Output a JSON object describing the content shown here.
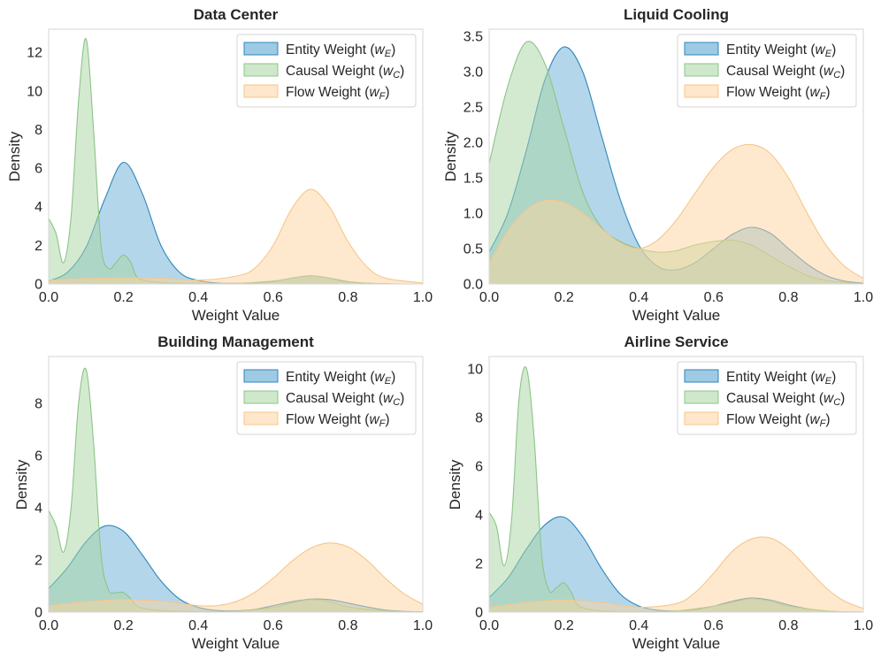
{
  "colors": {
    "entity_fill": "#6aaed6",
    "entity_line": "#2f86bd",
    "causal_fill": "#a8d5a2",
    "causal_line": "#8cc487",
    "flow_fill": "#fdd49e",
    "flow_line": "#f8c58a"
  },
  "legend": [
    {
      "key": "entity",
      "label": "Entity Weight (",
      "sym": "w",
      "sub": "E",
      "close": ")"
    },
    {
      "key": "causal",
      "label": "Causal Weight (",
      "sym": "w",
      "sub": "C",
      "close": ")"
    },
    {
      "key": "flow",
      "label": "Flow Weight (",
      "sym": "w",
      "sub": "F",
      "close": ")"
    }
  ],
  "chart_data": [
    {
      "type": "area",
      "title": "Data Center",
      "xlabel": "Weight Value",
      "ylabel": "Density",
      "xlim": [
        0,
        1
      ],
      "ylim": [
        0,
        13.2
      ],
      "xticks": [
        "0.0",
        "0.2",
        "0.4",
        "0.6",
        "0.8",
        "1.0"
      ],
      "yticks": [
        0,
        2,
        4,
        6,
        8,
        10,
        12
      ],
      "legend_position": "top-right",
      "series": [
        {
          "name": "Entity Weight (w_E)",
          "key": "entity",
          "x": [
            0.0,
            0.05,
            0.1,
            0.15,
            0.2,
            0.25,
            0.3,
            0.35,
            0.4,
            0.45,
            0.5,
            0.55,
            0.6,
            0.65,
            0.7,
            0.75,
            0.8,
            0.85,
            0.9,
            0.95,
            1.0
          ],
          "y": [
            0.15,
            0.6,
            1.9,
            4.4,
            6.3,
            4.7,
            2.0,
            0.6,
            0.18,
            0.05,
            0.03,
            0.05,
            0.12,
            0.3,
            0.42,
            0.3,
            0.12,
            0.04,
            0.01,
            0.0,
            0.0
          ]
        },
        {
          "name": "Causal Weight (w_C)",
          "key": "causal",
          "x": [
            0.0,
            0.02,
            0.04,
            0.06,
            0.08,
            0.1,
            0.12,
            0.14,
            0.16,
            0.18,
            0.2,
            0.22,
            0.24,
            0.3,
            0.4,
            0.5,
            0.6,
            0.65,
            0.7,
            0.75,
            0.8,
            0.9,
            1.0
          ],
          "y": [
            3.4,
            2.6,
            1.1,
            3.5,
            9.5,
            12.7,
            8.0,
            2.0,
            0.8,
            1.1,
            1.5,
            1.1,
            0.3,
            0.08,
            0.03,
            0.03,
            0.15,
            0.3,
            0.42,
            0.3,
            0.1,
            0.01,
            0.0
          ]
        },
        {
          "name": "Flow Weight (w_F)",
          "key": "flow",
          "x": [
            0.0,
            0.1,
            0.2,
            0.3,
            0.4,
            0.5,
            0.55,
            0.6,
            0.65,
            0.7,
            0.75,
            0.8,
            0.85,
            0.9,
            1.0
          ],
          "y": [
            0.2,
            0.28,
            0.32,
            0.3,
            0.2,
            0.4,
            0.8,
            2.0,
            3.9,
            4.9,
            4.0,
            2.2,
            0.9,
            0.3,
            0.05
          ]
        }
      ]
    },
    {
      "type": "area",
      "title": "Liquid Cooling",
      "xlabel": "Weight Value",
      "ylabel": "",
      "xlim": [
        0,
        1
      ],
      "ylim": [
        0,
        3.6
      ],
      "xticks": [
        "0.0",
        "0.2",
        "0.4",
        "0.6",
        "0.8",
        "1.0"
      ],
      "yticks": [
        "0.0",
        "0.5",
        "1.0",
        "1.5",
        "2.0",
        "2.5",
        "3.0",
        "3.5"
      ],
      "legend_position": "top-right",
      "series": [
        {
          "name": "Entity Weight (w_E)",
          "key": "entity",
          "x": [
            0.0,
            0.05,
            0.1,
            0.15,
            0.2,
            0.25,
            0.3,
            0.35,
            0.4,
            0.45,
            0.5,
            0.55,
            0.6,
            0.65,
            0.7,
            0.75,
            0.8,
            0.85,
            0.9,
            0.95,
            1.0
          ],
          "y": [
            0.45,
            1.0,
            1.9,
            2.9,
            3.35,
            3.0,
            2.1,
            1.2,
            0.55,
            0.25,
            0.2,
            0.3,
            0.5,
            0.7,
            0.8,
            0.72,
            0.5,
            0.28,
            0.12,
            0.04,
            0.01
          ]
        },
        {
          "name": "Causal Weight (w_C)",
          "key": "causal",
          "x": [
            0.0,
            0.05,
            0.1,
            0.15,
            0.2,
            0.25,
            0.3,
            0.35,
            0.4,
            0.45,
            0.5,
            0.55,
            0.6,
            0.65,
            0.7,
            0.75,
            0.8,
            0.85,
            0.9,
            0.95,
            1.0
          ],
          "y": [
            1.7,
            2.8,
            3.42,
            3.1,
            2.2,
            1.3,
            0.8,
            0.6,
            0.5,
            0.45,
            0.47,
            0.55,
            0.6,
            0.62,
            0.55,
            0.4,
            0.25,
            0.12,
            0.05,
            0.02,
            0.0
          ]
        },
        {
          "name": "Flow Weight (w_F)",
          "key": "flow",
          "x": [
            0.0,
            0.05,
            0.1,
            0.15,
            0.2,
            0.25,
            0.3,
            0.35,
            0.4,
            0.45,
            0.5,
            0.55,
            0.6,
            0.65,
            0.7,
            0.75,
            0.8,
            0.85,
            0.9,
            0.95,
            1.0
          ],
          "y": [
            0.28,
            0.75,
            1.05,
            1.18,
            1.15,
            1.0,
            0.78,
            0.58,
            0.5,
            0.62,
            0.9,
            1.28,
            1.65,
            1.9,
            1.97,
            1.85,
            1.5,
            1.0,
            0.55,
            0.25,
            0.08
          ]
        }
      ]
    },
    {
      "type": "area",
      "title": "Building Management",
      "xlabel": "Weight Value",
      "ylabel": "Density",
      "xlim": [
        0,
        1
      ],
      "ylim": [
        0,
        9.8
      ],
      "xticks": [
        "0.0",
        "0.2",
        "0.4",
        "0.6",
        "0.8",
        "1.0"
      ],
      "yticks": [
        0,
        2,
        4,
        6,
        8
      ],
      "legend_position": "top-right",
      "series": [
        {
          "name": "Entity Weight (w_E)",
          "key": "entity",
          "x": [
            0.0,
            0.05,
            0.1,
            0.15,
            0.2,
            0.25,
            0.3,
            0.35,
            0.4,
            0.45,
            0.5,
            0.55,
            0.6,
            0.65,
            0.7,
            0.75,
            0.8,
            0.85,
            0.9,
            0.95,
            1.0
          ],
          "y": [
            0.9,
            1.7,
            2.7,
            3.3,
            3.1,
            2.2,
            1.2,
            0.5,
            0.18,
            0.06,
            0.05,
            0.1,
            0.25,
            0.4,
            0.5,
            0.48,
            0.35,
            0.2,
            0.08,
            0.03,
            0.01
          ]
        },
        {
          "name": "Causal Weight (w_C)",
          "key": "causal",
          "x": [
            0.0,
            0.02,
            0.04,
            0.06,
            0.08,
            0.1,
            0.12,
            0.14,
            0.16,
            0.18,
            0.2,
            0.22,
            0.24,
            0.3,
            0.4,
            0.5,
            0.6,
            0.65,
            0.7,
            0.75,
            0.8,
            0.9,
            1.0
          ],
          "y": [
            3.9,
            3.3,
            2.3,
            4.0,
            8.0,
            9.3,
            6.5,
            2.2,
            0.85,
            0.75,
            0.75,
            0.5,
            0.2,
            0.06,
            0.02,
            0.03,
            0.18,
            0.35,
            0.48,
            0.4,
            0.2,
            0.04,
            0.0
          ]
        },
        {
          "name": "Flow Weight (w_F)",
          "key": "flow",
          "x": [
            0.0,
            0.1,
            0.2,
            0.3,
            0.4,
            0.45,
            0.5,
            0.55,
            0.6,
            0.65,
            0.7,
            0.75,
            0.8,
            0.85,
            0.9,
            0.95,
            1.0
          ],
          "y": [
            0.25,
            0.4,
            0.48,
            0.42,
            0.25,
            0.25,
            0.4,
            0.75,
            1.3,
            1.95,
            2.45,
            2.65,
            2.5,
            2.0,
            1.3,
            0.7,
            0.3
          ]
        }
      ]
    },
    {
      "type": "area",
      "title": "Airline Service",
      "xlabel": "Weight Value",
      "ylabel": "Density",
      "xlim": [
        0,
        1
      ],
      "ylim": [
        0,
        10.5
      ],
      "xticks": [
        "0.0",
        "0.2",
        "0.4",
        "0.6",
        "0.8",
        "1.0"
      ],
      "yticks": [
        0,
        2,
        4,
        6,
        8,
        10
      ],
      "legend_position": "top-right",
      "series": [
        {
          "name": "Entity Weight (w_E)",
          "key": "entity",
          "x": [
            0.0,
            0.05,
            0.1,
            0.15,
            0.2,
            0.25,
            0.3,
            0.35,
            0.4,
            0.45,
            0.5,
            0.55,
            0.6,
            0.65,
            0.7,
            0.75,
            0.8,
            0.85,
            0.9,
            0.95,
            1.0
          ],
          "y": [
            0.6,
            1.4,
            2.6,
            3.6,
            3.9,
            3.1,
            1.8,
            0.75,
            0.25,
            0.08,
            0.05,
            0.1,
            0.25,
            0.45,
            0.58,
            0.5,
            0.3,
            0.14,
            0.05,
            0.01,
            0.0
          ]
        },
        {
          "name": "Causal Weight (w_C)",
          "key": "causal",
          "x": [
            0.0,
            0.02,
            0.04,
            0.06,
            0.08,
            0.1,
            0.12,
            0.14,
            0.16,
            0.18,
            0.2,
            0.22,
            0.24,
            0.3,
            0.4,
            0.5,
            0.6,
            0.65,
            0.7,
            0.75,
            0.8,
            0.9,
            1.0
          ],
          "y": [
            4.1,
            3.5,
            1.9,
            3.8,
            8.8,
            10.0,
            7.2,
            2.4,
            0.9,
            1.0,
            1.2,
            0.8,
            0.25,
            0.05,
            0.02,
            0.05,
            0.25,
            0.4,
            0.55,
            0.45,
            0.25,
            0.05,
            0.0
          ]
        },
        {
          "name": "Flow Weight (w_F)",
          "key": "flow",
          "x": [
            0.0,
            0.1,
            0.2,
            0.3,
            0.4,
            0.5,
            0.55,
            0.6,
            0.65,
            0.7,
            0.75,
            0.8,
            0.85,
            0.9,
            0.95,
            1.0
          ],
          "y": [
            0.2,
            0.4,
            0.5,
            0.4,
            0.2,
            0.35,
            0.8,
            1.6,
            2.5,
            3.0,
            3.05,
            2.6,
            1.8,
            1.0,
            0.45,
            0.15
          ]
        }
      ]
    }
  ]
}
